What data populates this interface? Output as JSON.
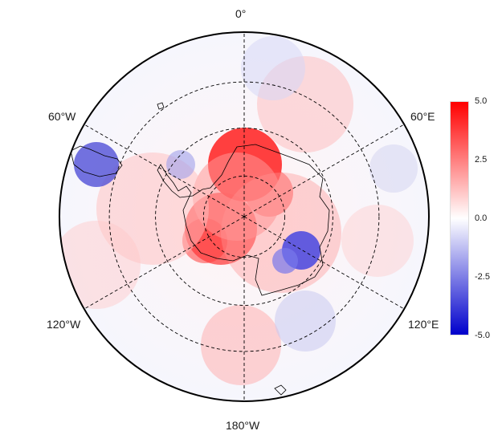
{
  "map": {
    "projection": "south-polar stereographic",
    "graticule_style": "dashed",
    "longitude_labels": {
      "top": "0°",
      "bottom": "180°W",
      "upper_left": "60°W",
      "upper_right": "60°E",
      "lower_left": "120°W",
      "lower_right": "120°E"
    }
  },
  "legend": {
    "ticks": [
      "5.0",
      "2.5",
      "0.0",
      "-2.5",
      "-5.0"
    ],
    "range": [
      -5,
      5
    ],
    "color_high": "#ff0000",
    "color_mid": "#ffffff",
    "color_low": "#0000cc"
  }
}
